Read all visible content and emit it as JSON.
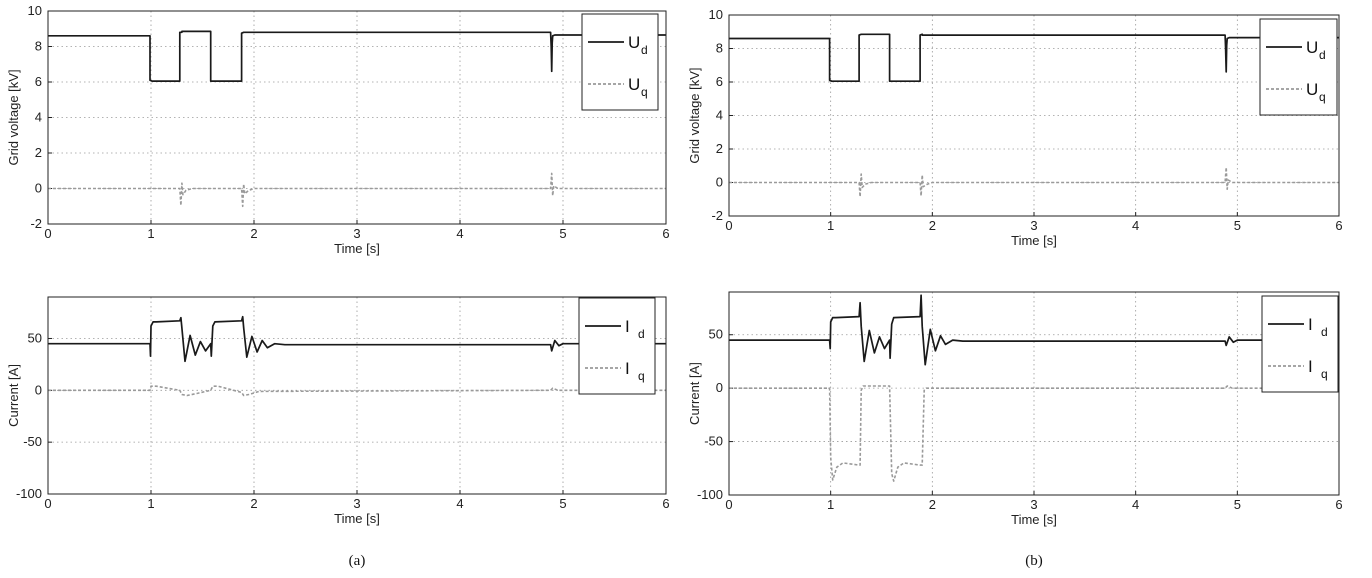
{
  "figure": {
    "captions": [
      "(a)",
      "(b)"
    ]
  },
  "chart_data": [
    {
      "id": "a_voltage",
      "type": "line",
      "xlabel": "Time [s]",
      "ylabel": "Grid voltage [kV]",
      "xlim": [
        0,
        6
      ],
      "ylim": [
        -2,
        10
      ],
      "xticks": [
        0,
        1,
        2,
        3,
        4,
        5,
        6
      ],
      "yticks": [
        -2,
        0,
        2,
        4,
        6,
        8,
        10
      ],
      "grid": true,
      "legend_position": "top-right",
      "series": [
        {
          "name": "U",
          "sub": "d",
          "color": "#1a1a1a",
          "dash": false,
          "x": [
            0,
            0.99,
            0.99,
            1.01,
            1.01,
            1.28,
            1.28,
            1.3,
            1.3,
            1.58,
            1.58,
            1.6,
            1.6,
            1.88,
            1.88,
            1.9,
            1.9,
            4.88,
            4.885,
            4.89,
            4.895,
            4.9,
            4.92,
            6
          ],
          "y": [
            8.6,
            8.6,
            6.1,
            6.05,
            6.05,
            6.05,
            8.8,
            8.8,
            8.85,
            8.85,
            6.05,
            6.05,
            6.05,
            6.05,
            8.75,
            8.8,
            8.8,
            8.8,
            8.0,
            6.6,
            8.2,
            8.6,
            8.65,
            8.65
          ]
        },
        {
          "name": "U",
          "sub": "q",
          "color": "#9a9a9a",
          "dash": true,
          "x": [
            0,
            1.28,
            1.29,
            1.3,
            1.31,
            1.34,
            1.4,
            1.88,
            1.89,
            1.9,
            1.91,
            1.95,
            2.0,
            4.88,
            4.89,
            4.9,
            4.91,
            4.95,
            6
          ],
          "y": [
            0,
            0,
            -0.95,
            0.3,
            -0.35,
            -0.1,
            0,
            0,
            -1.0,
            0.25,
            -0.3,
            -0.1,
            0,
            0,
            0.85,
            -0.4,
            0.15,
            0,
            0
          ]
        }
      ]
    },
    {
      "id": "b_voltage",
      "type": "line",
      "xlabel": "Time [s]",
      "ylabel": "Grid voltage [kV]",
      "xlim": [
        0,
        6
      ],
      "ylim": [
        -2,
        10
      ],
      "xticks": [
        0,
        1,
        2,
        3,
        4,
        5,
        6
      ],
      "yticks": [
        -2,
        0,
        2,
        4,
        6,
        8,
        10
      ],
      "grid": true,
      "legend_position": "top-right",
      "series": [
        {
          "name": "U",
          "sub": "d",
          "color": "#1a1a1a",
          "dash": false,
          "x": [
            0,
            0.99,
            0.99,
            1.01,
            1.01,
            1.28,
            1.28,
            1.3,
            1.3,
            1.58,
            1.58,
            1.6,
            1.6,
            1.88,
            1.88,
            1.9,
            1.9,
            4.88,
            4.885,
            4.89,
            4.895,
            4.9,
            4.92,
            6
          ],
          "y": [
            8.6,
            8.6,
            6.1,
            6.05,
            6.05,
            6.05,
            8.8,
            8.85,
            8.85,
            8.85,
            6.05,
            6.05,
            6.05,
            6.05,
            8.8,
            8.85,
            8.8,
            8.8,
            8.0,
            6.6,
            8.2,
            8.6,
            8.65,
            8.65
          ]
        },
        {
          "name": "U",
          "sub": "q",
          "color": "#9a9a9a",
          "dash": true,
          "x": [
            0,
            1.28,
            1.29,
            1.3,
            1.31,
            1.34,
            1.4,
            1.88,
            1.89,
            1.9,
            1.91,
            1.95,
            2.0,
            4.88,
            4.89,
            4.9,
            4.91,
            4.95,
            6
          ],
          "y": [
            0,
            0,
            -0.85,
            0.5,
            -0.3,
            -0.1,
            0,
            0,
            -0.8,
            0.45,
            -0.25,
            -0.1,
            0,
            0,
            0.9,
            -0.4,
            0.15,
            0,
            0
          ]
        }
      ]
    },
    {
      "id": "a_current",
      "type": "line",
      "xlabel": "Time [s]",
      "ylabel": "Current [A]",
      "xlim": [
        0,
        6
      ],
      "ylim": [
        -100,
        90
      ],
      "xticks": [
        0,
        1,
        2,
        3,
        4,
        5,
        6
      ],
      "yticks": [
        -100,
        -50,
        0,
        50
      ],
      "grid": true,
      "legend_position": "top-right",
      "series": [
        {
          "name": "I",
          "sub": "d",
          "color": "#1a1a1a",
          "dash": false,
          "x": [
            0,
            0.99,
            0.995,
            1.0,
            1.02,
            1.05,
            1.28,
            1.29,
            1.3,
            1.33,
            1.38,
            1.43,
            1.48,
            1.53,
            1.58,
            1.585,
            1.6,
            1.62,
            1.88,
            1.89,
            1.9,
            1.93,
            1.98,
            2.03,
            2.08,
            2.13,
            2.2,
            2.3,
            4.88,
            4.89,
            4.92,
            4.96,
            5.0,
            6
          ],
          "y": [
            45,
            45,
            33,
            62,
            66,
            66,
            67,
            70,
            60,
            28,
            53,
            34,
            47,
            38,
            45,
            33,
            62,
            66,
            67,
            71,
            60,
            32,
            52,
            37,
            48,
            41,
            45,
            44,
            44,
            38,
            48,
            43,
            45,
            45
          ]
        },
        {
          "name": "I",
          "sub": "q",
          "color": "#9a9a9a",
          "dash": true,
          "x": [
            0,
            0.99,
            1.0,
            1.05,
            1.28,
            1.3,
            1.35,
            1.45,
            1.58,
            1.6,
            1.65,
            1.88,
            1.9,
            1.95,
            2.05,
            4.88,
            4.9,
            4.95,
            6
          ],
          "y": [
            0,
            0,
            4,
            4,
            0,
            -4,
            -5,
            -3,
            0,
            4,
            4,
            -2,
            -5,
            -4,
            -1,
            0,
            2,
            0,
            0
          ]
        }
      ]
    },
    {
      "id": "b_current",
      "type": "line",
      "xlabel": "Time [s]",
      "ylabel": "Current [A]",
      "xlim": [
        0,
        6
      ],
      "ylim": [
        -100,
        90
      ],
      "xticks": [
        0,
        1,
        2,
        3,
        4,
        5,
        6
      ],
      "yticks": [
        -100,
        -50,
        0,
        50
      ],
      "grid": true,
      "legend_position": "top-right",
      "series": [
        {
          "name": "I",
          "sub": "d",
          "color": "#1a1a1a",
          "dash": false,
          "x": [
            0,
            0.99,
            0.995,
            1.0,
            1.02,
            1.05,
            1.28,
            1.29,
            1.3,
            1.33,
            1.38,
            1.43,
            1.48,
            1.53,
            1.58,
            1.585,
            1.6,
            1.62,
            1.88,
            1.89,
            1.9,
            1.93,
            1.98,
            2.03,
            2.08,
            2.13,
            2.2,
            2.3,
            4.88,
            4.89,
            4.92,
            4.96,
            5.0,
            6
          ],
          "y": [
            45,
            45,
            37,
            62,
            66,
            66,
            67,
            80,
            58,
            25,
            54,
            33,
            48,
            37,
            45,
            28,
            60,
            66,
            67,
            87,
            58,
            22,
            55,
            35,
            49,
            41,
            45,
            44,
            44,
            40,
            48,
            43,
            45,
            45
          ]
        },
        {
          "name": "I",
          "sub": "q",
          "color": "#9a9a9a",
          "dash": true,
          "x": [
            0,
            0.99,
            1.0,
            1.02,
            1.06,
            1.12,
            1.28,
            1.29,
            1.3,
            1.32,
            1.58,
            1.6,
            1.62,
            1.66,
            1.72,
            1.88,
            1.9,
            1.92,
            1.94,
            4.88,
            4.9,
            4.95,
            6
          ],
          "y": [
            0,
            0,
            -65,
            -86,
            -74,
            -70,
            -72,
            -72,
            -2,
            2,
            2,
            -80,
            -87,
            -74,
            -70,
            -72,
            -72,
            -2,
            0,
            0,
            2,
            0,
            0
          ]
        }
      ]
    }
  ]
}
